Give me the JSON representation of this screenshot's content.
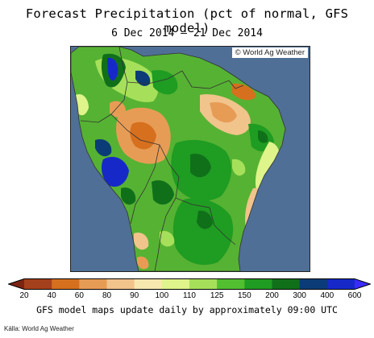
{
  "header": {
    "title": "Forecast Precipitation (pct of normal, GFS model)",
    "subtitle": "6 Dec 2014 — 21 Dec 2014"
  },
  "map": {
    "credit": "© World Ag Weather",
    "ocean_color": "#4f6f96",
    "land_color": "#56b233",
    "border_color": "#333333"
  },
  "legend": {
    "labels": [
      "20",
      "40",
      "60",
      "80",
      "90",
      "100",
      "110",
      "125",
      "150",
      "200",
      "300",
      "400",
      "600"
    ],
    "colors": [
      "#7b2412",
      "#a5401c",
      "#d6701e",
      "#e79c56",
      "#f1c48c",
      "#f7e8b0",
      "#dff48a",
      "#a6e05a",
      "#52bf31",
      "#1f9c22",
      "#10701a",
      "#0b3c77",
      "#1629c8",
      "#3a2cff"
    ]
  },
  "footer": {
    "note": "GFS model maps update daily by approximately 09:00 UTC",
    "source": "Källa: World Ag Weather"
  }
}
